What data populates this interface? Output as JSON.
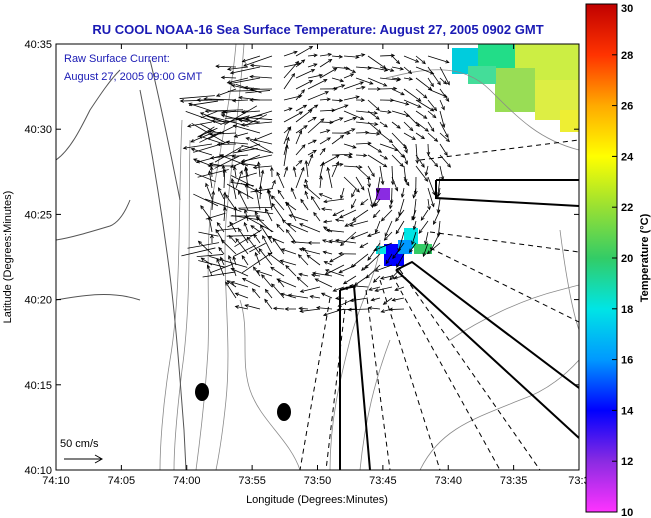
{
  "title": "RU COOL  NOAA-16  Sea Surface Temperature:  August 27, 2005 0902 GMT",
  "annotation": {
    "line1": "Raw Surface Current:",
    "line2": "August 27, 2005 09:00 GMT"
  },
  "scale": {
    "label": "50 cm/s"
  },
  "axes": {
    "xlabel": "Longitude (Degrees:Minutes)",
    "ylabel": "Latitude (Degrees:Minutes)",
    "x_ticks": [
      "74:10",
      "74:05",
      "74:00",
      "73:55",
      "73:50",
      "73:45",
      "73:40",
      "73:35",
      "73:3"
    ],
    "y_ticks": [
      "40:35",
      "40:30",
      "40:25",
      "40:20",
      "40:15",
      "40:10"
    ]
  },
  "colorbar": {
    "label": "Temperature (°C)",
    "ticks": [
      "30",
      "28",
      "26",
      "24",
      "22",
      "20",
      "18",
      "16",
      "14",
      "12",
      "10"
    ],
    "range": [
      10,
      30
    ]
  },
  "colors": {
    "title": "#1a1ab4",
    "annotation": "#1a1ab4",
    "land_contour": "#7a7a7a",
    "vector": "#000000"
  }
}
